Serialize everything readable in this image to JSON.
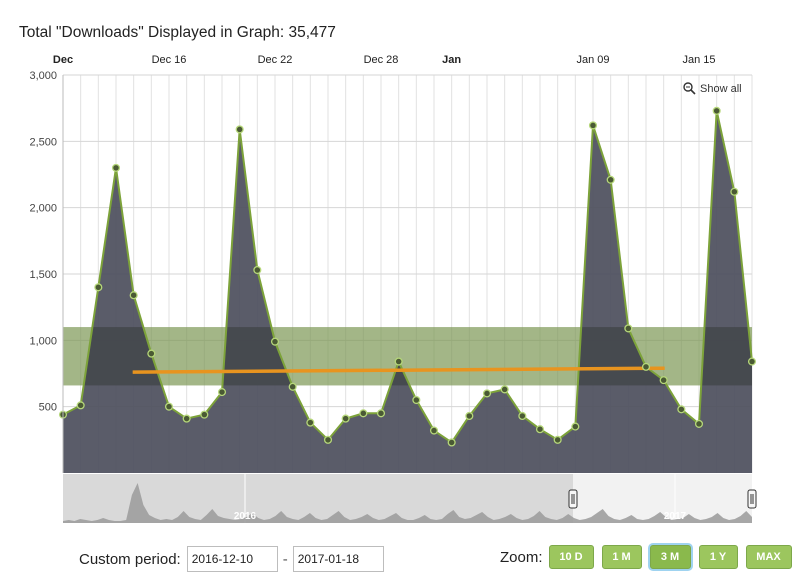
{
  "header": {
    "title": "Total \"Downloads\" Displayed in Graph: 35,477"
  },
  "chart_data": {
    "type": "area",
    "x": [
      "2016-12-10",
      "2016-12-11",
      "2016-12-12",
      "2016-12-13",
      "2016-12-14",
      "2016-12-15",
      "2016-12-16",
      "2016-12-17",
      "2016-12-18",
      "2016-12-19",
      "2016-12-20",
      "2016-12-21",
      "2016-12-22",
      "2016-12-23",
      "2016-12-24",
      "2016-12-25",
      "2016-12-26",
      "2016-12-27",
      "2016-12-28",
      "2016-12-29",
      "2016-12-30",
      "2016-12-31",
      "2017-01-01",
      "2017-01-02",
      "2017-01-03",
      "2017-01-04",
      "2017-01-05",
      "2017-01-06",
      "2017-01-07",
      "2017-01-08",
      "2017-01-09",
      "2017-01-10",
      "2017-01-11",
      "2017-01-12",
      "2017-01-13",
      "2017-01-14",
      "2017-01-15",
      "2017-01-16",
      "2017-01-17",
      "2017-01-18"
    ],
    "series": [
      {
        "values": [
          440,
          510,
          1400,
          2300,
          1340,
          900,
          500,
          410,
          440,
          610,
          2590,
          1530,
          990,
          650,
          380,
          250,
          410,
          450,
          450,
          840,
          550,
          320,
          230,
          430,
          600,
          630,
          430,
          330,
          250,
          350,
          2620,
          2210,
          1090,
          800,
          700,
          480,
          370,
          2730,
          2120,
          840
        ]
      }
    ],
    "trend": {
      "start": 760,
      "end": 790
    },
    "band": {
      "low": 660,
      "high": 1100
    },
    "ylim": [
      0,
      3000
    ],
    "yticks": [
      "500",
      "1,000",
      "1,500",
      "2,000",
      "2,500",
      "3,000"
    ],
    "xticks": [
      {
        "label": "Dec",
        "bold": true
      },
      {
        "label": "Dec 16",
        "bold": false
      },
      {
        "label": "Dec 22",
        "bold": false
      },
      {
        "label": "Dec 28",
        "bold": false
      },
      {
        "label": "Jan",
        "bold": true
      },
      {
        "label": "Jan 09",
        "bold": false
      },
      {
        "label": "Jan 15",
        "bold": false
      }
    ],
    "navigator": {
      "labels": [
        "2016",
        "2017"
      ]
    },
    "colors": {
      "area": "#4d505e",
      "line": "#7da33a",
      "trend": "#e8941f",
      "band": "#a7cb6f"
    },
    "grid": true
  },
  "controls": {
    "show_all": "Show all",
    "custom_label": "Custom period:",
    "start_value": "2016-12-10",
    "end_value": "2017-01-18",
    "dash": "-",
    "zoom_label": "Zoom:",
    "zoom_buttons": [
      {
        "label": "10 D",
        "active": false
      },
      {
        "label": "1 M",
        "active": false
      },
      {
        "label": "3 M",
        "active": true
      },
      {
        "label": "1 Y",
        "active": false
      },
      {
        "label": "MAX",
        "active": false
      }
    ]
  }
}
